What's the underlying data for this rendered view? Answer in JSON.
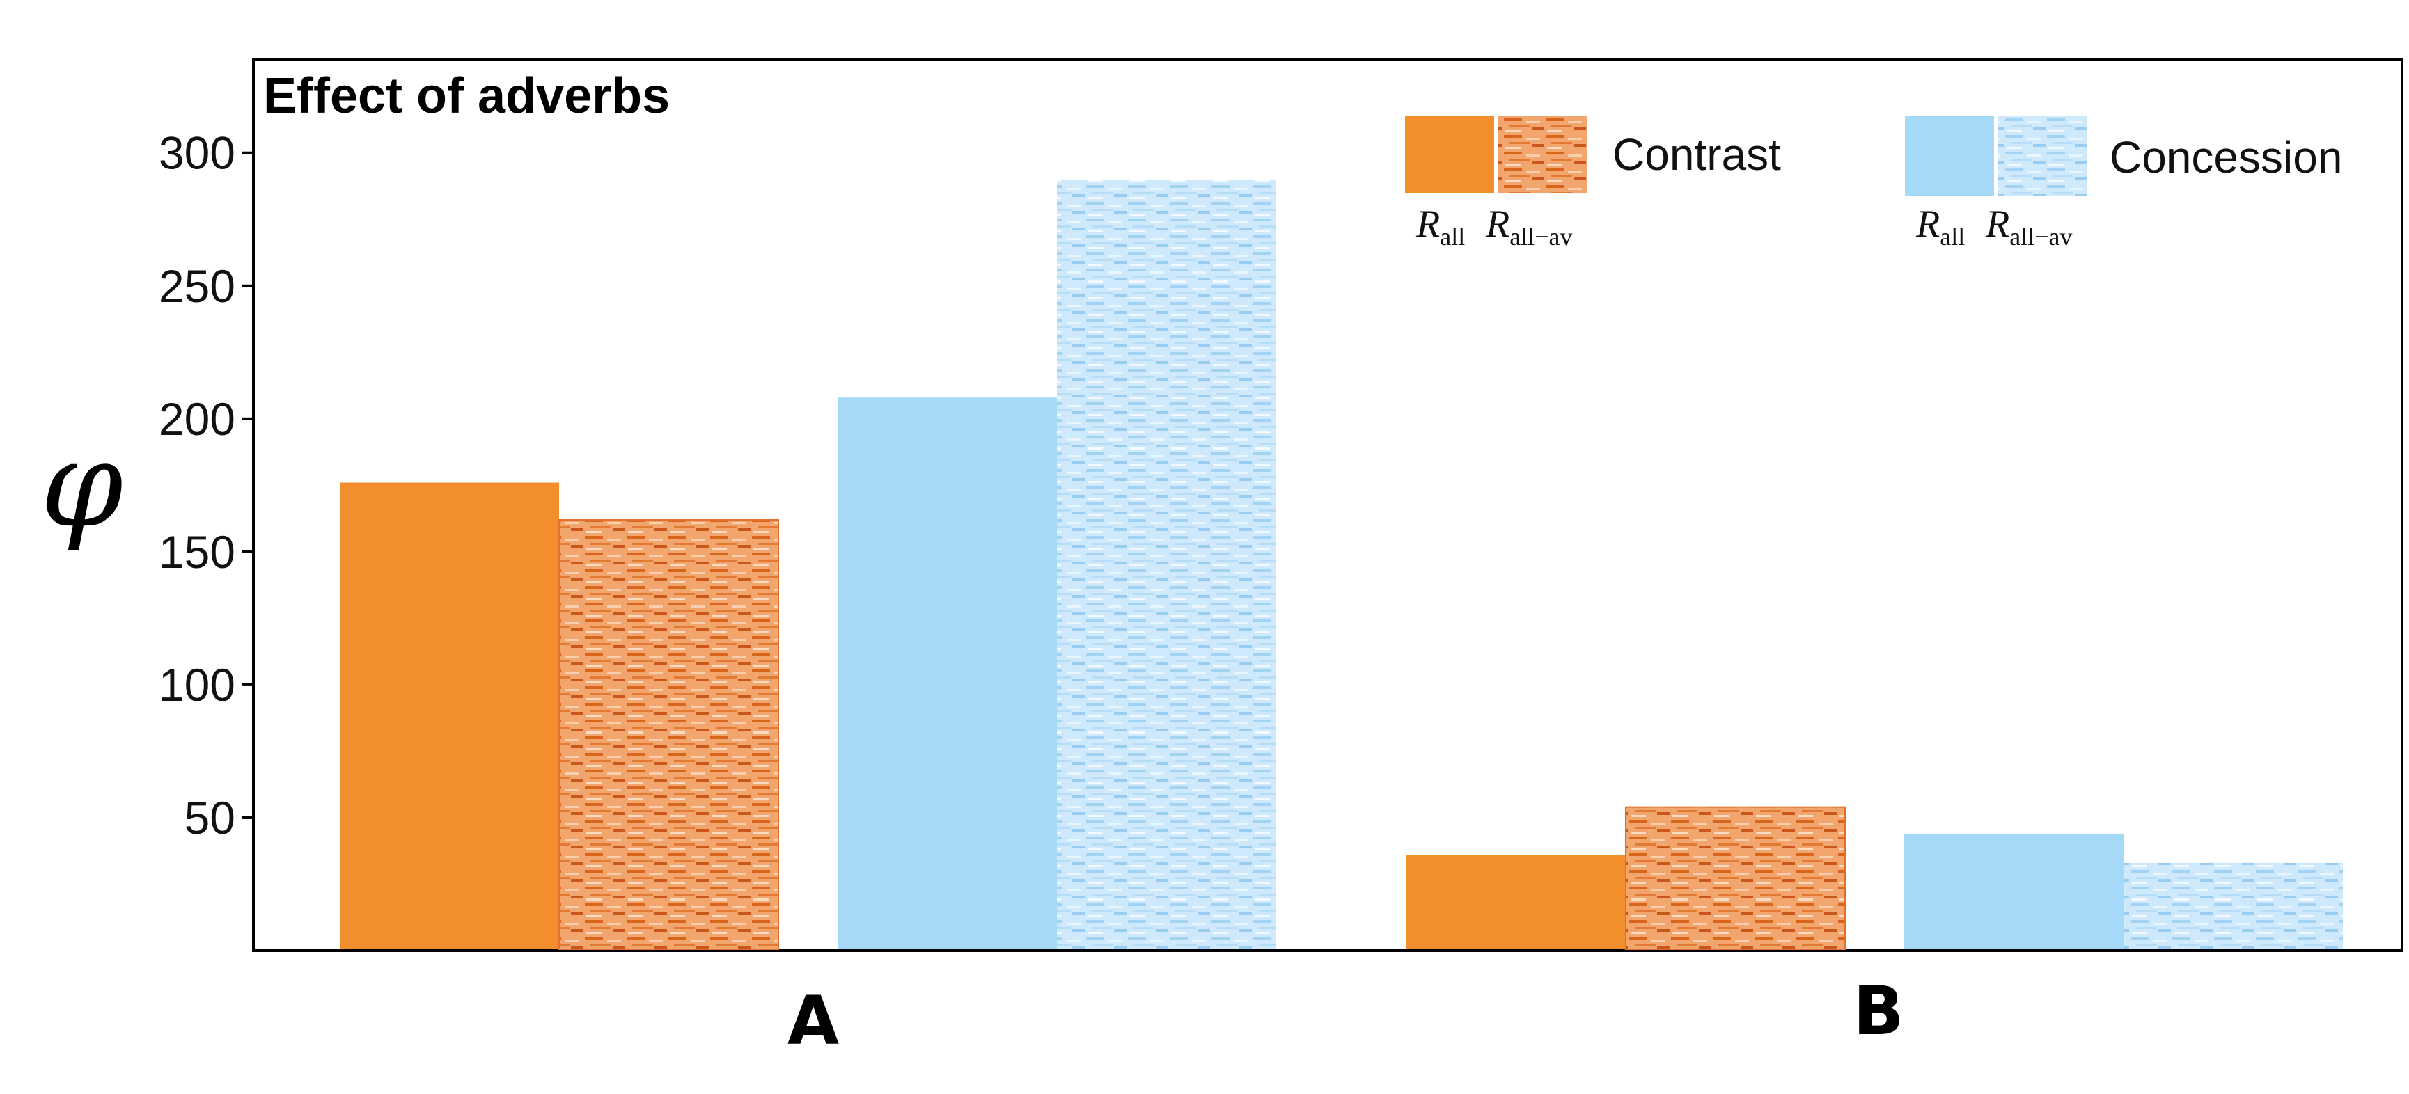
{
  "chart_data": {
    "type": "bar",
    "title": "Effect of adverbs",
    "ylabel": "φ",
    "xlabel": "",
    "categories": [
      "A",
      "B"
    ],
    "yticks": [
      50,
      100,
      150,
      200,
      250,
      300
    ],
    "ylim": [
      0,
      335
    ],
    "grid": false,
    "legend_placement": "top-right",
    "legend_groups": [
      {
        "name": "Contrast",
        "color": "#f28e2b",
        "variants": [
          "R_all",
          "R_all−av"
        ]
      },
      {
        "name": "Concession",
        "color": "#a6d8f7",
        "variants": [
          "R_all",
          "R_all−av"
        ]
      }
    ],
    "series": [
      {
        "group": "Contrast",
        "variant": "R_all",
        "pattern": "solid",
        "color": "#f28e2b",
        "values": [
          176,
          36
        ]
      },
      {
        "group": "Contrast",
        "variant": "R_all−av",
        "pattern": "textured",
        "color": "#e0702a",
        "values": [
          162,
          54
        ]
      },
      {
        "group": "Concession",
        "variant": "R_all",
        "pattern": "solid",
        "color": "#a6d8f7",
        "values": [
          208,
          44
        ]
      },
      {
        "group": "Concession",
        "variant": "R_all−av",
        "pattern": "textured",
        "color": "#bfe3fa",
        "values": [
          290,
          33
        ]
      }
    ]
  },
  "legend_labels": {
    "r_main": "R",
    "sub_all": "all",
    "sub_all_av": "all−av"
  },
  "colors": {
    "contrast_solid": "#f28e2b",
    "contrast_texture_base": "#f4b183",
    "contrast_texture_dark": "#d9641c",
    "concession_solid": "#a6d8f7",
    "concession_texture_base": "#d2ecfc",
    "concession_texture_dark": "#a3d3f3"
  }
}
